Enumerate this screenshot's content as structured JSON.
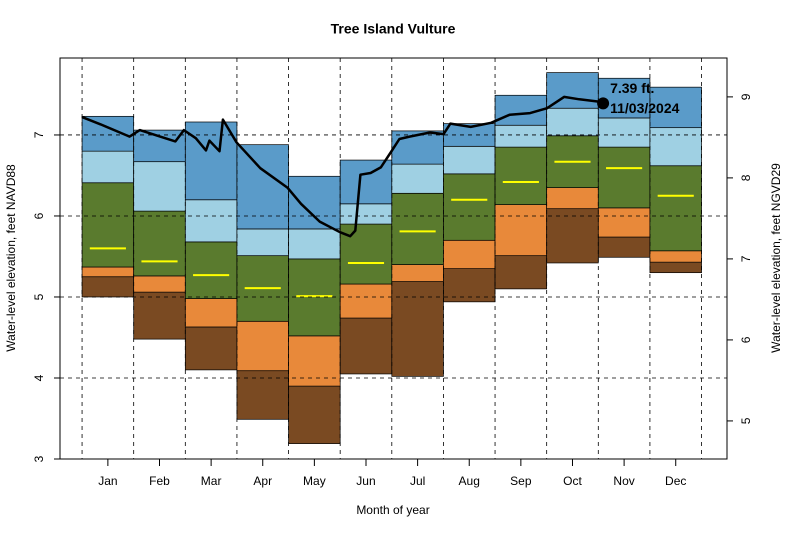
{
  "chart_data": {
    "type": "percentile-bands",
    "title": "Tree Island Vulture",
    "x_label": "Month of year",
    "y_label": "Water-level elevation, feet NAVD88",
    "y2_label": "Water-level elevation, feet NGVD29",
    "categories": [
      "Jan",
      "Feb",
      "Mar",
      "Apr",
      "May",
      "Jun",
      "Jul",
      "Aug",
      "Sep",
      "Oct",
      "Nov",
      "Dec"
    ],
    "ylim": [
      3,
      7.95
    ],
    "yticks": [
      3,
      4,
      5,
      6,
      7
    ],
    "y2lim": [
      4.53,
      9.48
    ],
    "y2ticks": [
      5,
      6,
      7,
      8,
      9
    ],
    "xlim": [
      -13,
      380
    ],
    "grid": true,
    "series": [
      {
        "color": "#7a4a22",
        "values": [
          5.0,
          4.48,
          4.1,
          3.49,
          3.19,
          4.05,
          4.02,
          4.94,
          5.1,
          5.42,
          5.49,
          5.3
        ]
      },
      {
        "color": "#e8893a",
        "values": [
          5.25,
          5.06,
          4.63,
          4.09,
          3.9,
          4.74,
          5.19,
          5.35,
          5.51,
          6.09,
          5.74,
          5.43
        ]
      },
      {
        "color": "#5a7b2e",
        "values": [
          5.37,
          5.26,
          4.98,
          4.7,
          4.52,
          5.16,
          5.4,
          5.7,
          6.14,
          6.35,
          6.1,
          5.57
        ]
      },
      {
        "color": "#9fd0e3",
        "values": [
          6.41,
          6.06,
          5.68,
          5.51,
          5.47,
          5.9,
          6.28,
          6.52,
          6.85,
          6.99,
          6.85,
          6.62
        ]
      },
      {
        "color": "#5a9bc9",
        "values": [
          6.8,
          6.67,
          6.2,
          5.84,
          5.84,
          6.15,
          6.64,
          6.86,
          7.12,
          7.33,
          7.21,
          7.09
        ]
      },
      {
        "values": [
          7.23,
          7.06,
          7.16,
          6.88,
          6.49,
          6.69,
          7.05,
          7.14,
          7.49,
          7.77,
          7.7,
          7.59
        ]
      }
    ],
    "median": {
      "color": "#ffff00",
      "values": [
        5.6,
        5.44,
        5.27,
        5.11,
        5.01,
        5.42,
        5.81,
        6.2,
        6.42,
        6.67,
        6.59,
        6.25
      ]
    },
    "current": {
      "color": "#000000",
      "x": [
        0,
        11,
        28,
        34,
        46,
        55,
        60,
        67,
        73,
        75,
        81,
        83,
        91,
        105,
        121,
        129,
        140,
        152,
        158,
        161,
        164,
        170,
        176,
        182,
        187,
        193,
        205,
        213,
        217,
        229,
        241,
        252,
        264,
        274,
        284,
        293,
        305,
        307
      ],
      "values": [
        7.22,
        7.13,
        6.98,
        7.06,
        6.98,
        6.92,
        7.06,
        6.96,
        6.81,
        6.93,
        6.8,
        7.19,
        6.91,
        6.59,
        6.35,
        6.15,
        5.93,
        5.8,
        5.75,
        5.82,
        6.51,
        6.53,
        6.6,
        6.79,
        6.95,
        6.98,
        7.03,
        7.01,
        7.14,
        7.1,
        7.15,
        7.25,
        7.27,
        7.33,
        7.47,
        7.44,
        7.41,
        7.39
      ]
    },
    "annotation": {
      "x": 307,
      "value": 7.39,
      "value_label": "7.39 ft.",
      "date": "11/03/2024"
    }
  }
}
